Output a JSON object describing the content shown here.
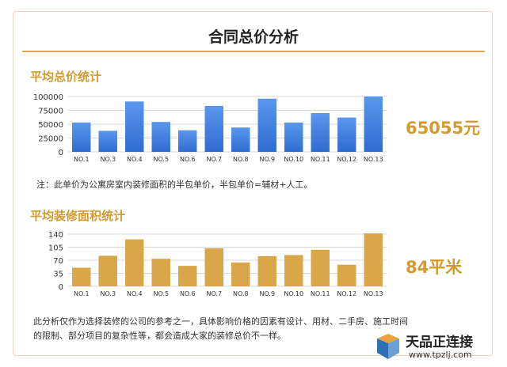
{
  "title": "合同总价分析",
  "section1": {
    "title": "平均总价统计",
    "value": "65055元",
    "note": "注：此单价为公寓房室内装修面积的半包单价，半包单价=辅材+人工。"
  },
  "section2": {
    "title": "平均装修面积统计",
    "value": "84平米",
    "note_line1": "此分析仅作为选择装修的公司的参考之一，具体影响价格的因素有设计、用材、二手房、施工时间",
    "note_line2": "的限制、部分项目的复杂性等，都会造成大家的装修总价不一样。"
  },
  "watermark": {
    "name": "天品正连接",
    "url": "www.tpzlj.com"
  },
  "colors": {
    "accent": "#d39a2e",
    "blue_bar": "#3d7ee0",
    "gold_bar": "#d9a74a"
  },
  "chart_data": [
    {
      "type": "bar",
      "categories": [
        "NO.1",
        "NO.3",
        "NO.4",
        "NO.5",
        "NO.6",
        "NO.7",
        "NO.8",
        "NO.9",
        "NO.10",
        "NO.11",
        "NO.12",
        "NO.13"
      ],
      "values": [
        53000,
        38000,
        91000,
        54000,
        39000,
        83000,
        44000,
        96000,
        53000,
        70000,
        62000,
        100000
      ],
      "yticks": [
        "100000",
        "75000",
        "50000",
        "25000",
        "0"
      ],
      "ylim": [
        0,
        100000
      ],
      "grid": true,
      "title": "平均总价统计"
    },
    {
      "type": "bar",
      "categories": [
        "NO.1",
        "NO.3",
        "NO.4",
        "NO.5",
        "NO.6",
        "NO.7",
        "NO.8",
        "NO.9",
        "NO.10",
        "NO.11",
        "NO.12",
        "NO.13"
      ],
      "values": [
        50,
        82,
        126,
        74,
        55,
        102,
        64,
        81,
        84,
        98,
        58,
        142
      ],
      "yticks": [
        "140",
        "105",
        "70",
        "35",
        "0"
      ],
      "ylim": [
        0,
        140
      ],
      "grid": true,
      "title": "平均装修面积统计"
    }
  ]
}
